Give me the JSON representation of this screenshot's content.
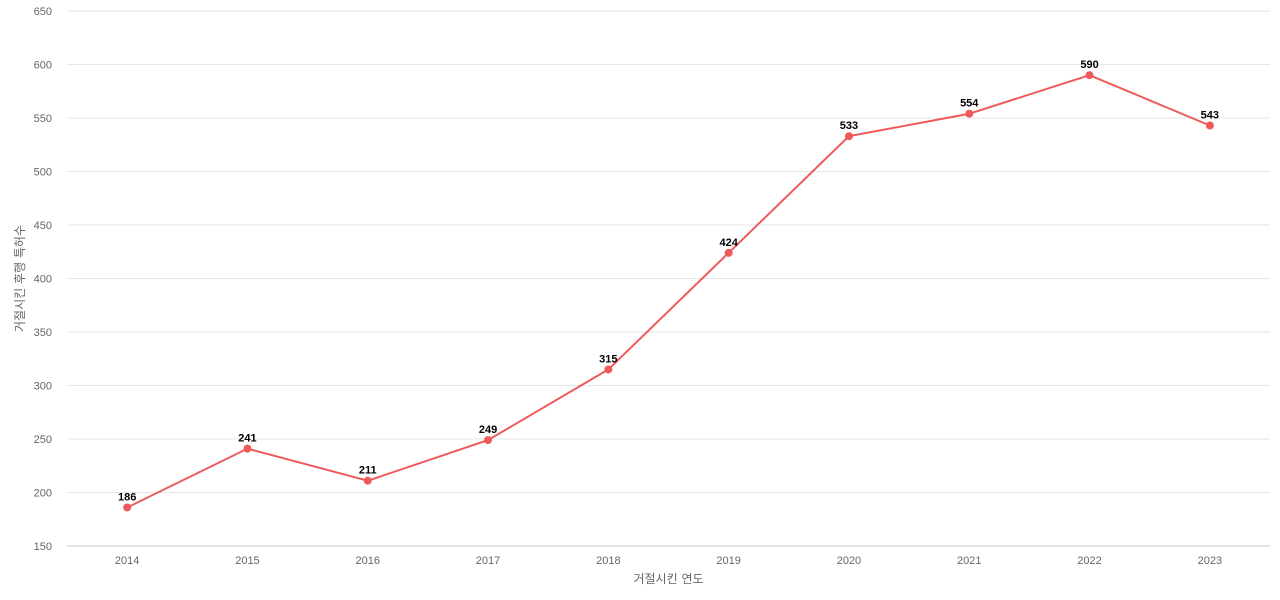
{
  "chart_data": {
    "type": "line",
    "title": "",
    "xlabel": "거절시킨 연도",
    "ylabel": "거절시킨 후행 특허수",
    "categories": [
      "2014",
      "2015",
      "2016",
      "2017",
      "2018",
      "2019",
      "2020",
      "2021",
      "2022",
      "2023"
    ],
    "series": [
      {
        "values": [
          186,
          241,
          211,
          249,
          315,
          424,
          533,
          554,
          590,
          543
        ],
        "color": "#ee5a5a"
      }
    ],
    "ylim": [
      150,
      650
    ],
    "yticks": [
      150,
      200,
      250,
      300,
      350,
      400,
      450,
      500,
      550,
      600,
      650
    ],
    "grid": true,
    "legend": "none",
    "data_labels": true
  }
}
